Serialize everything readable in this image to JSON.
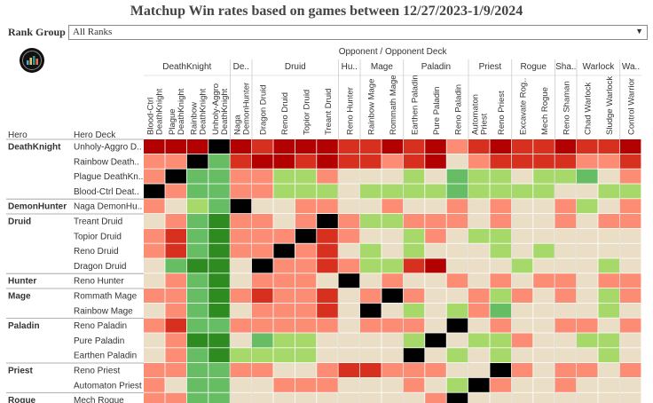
{
  "title": "Matchup Win rates based on games between 12/27/2023-1/9/2024",
  "filter": {
    "label": "Rank Group",
    "value": "All Ranks"
  },
  "header": {
    "opponent_label": "Opponent  /  Opponent Deck",
    "hero_label": "Hero",
    "deck_label": "Hero Deck"
  },
  "colors": {
    "black": "#000000",
    "dark_red": "#b30000",
    "red": "#d7301f",
    "salmon": "#fc8d74",
    "beige": "#eadfc6",
    "light_green": "#a6d96a",
    "green": "#66bd63",
    "dark_green": "#2e8b20"
  },
  "chart_data": {
    "type": "heatmap",
    "title": "Matchup Win rates based on games between 12/27/2023-1/9/2024",
    "color_scale_levels": [
      "black",
      "dark_red",
      "red",
      "salmon",
      "beige",
      "light_green",
      "green",
      "dark_green"
    ],
    "col_groups": [
      {
        "label": "DeathKnight",
        "span": 4
      },
      {
        "label": "De..",
        "span": 1
      },
      {
        "label": "Druid",
        "span": 4
      },
      {
        "label": "Hu..",
        "span": 1
      },
      {
        "label": "Mage",
        "span": 2
      },
      {
        "label": "Paladin",
        "span": 3
      },
      {
        "label": "Priest",
        "span": 2
      },
      {
        "label": "Rogue",
        "span": 2
      },
      {
        "label": "Sha..",
        "span": 1
      },
      {
        "label": "Warlock",
        "span": 2
      },
      {
        "label": "Wa..",
        "span": 1
      }
    ],
    "columns": [
      [
        "Blood-Ctrl",
        "DeathKnight"
      ],
      [
        "Plague",
        "DeathKnight"
      ],
      [
        "Rainbow",
        "DeathKnight"
      ],
      [
        "Unholy-Aggro",
        "DeathKnight"
      ],
      [
        "Naga",
        "DemonHunter"
      ],
      [
        "Dragon Druid"
      ],
      [
        "Reno Druid"
      ],
      [
        "Topior Druid"
      ],
      [
        "Treant Druid"
      ],
      [
        "Reno Hunter"
      ],
      [
        "Rainbow Mage"
      ],
      [
        "Rommath Mage"
      ],
      [
        "Earthen Paladin"
      ],
      [
        "Pure Paladin"
      ],
      [
        "Reno Paladin"
      ],
      [
        "Automaton",
        "Priest"
      ],
      [
        "Reno Priest"
      ],
      [
        "Excavate Rog.."
      ],
      [
        "Mech Rogue"
      ],
      [
        "Reno Shaman"
      ],
      [
        "Chad Warlock"
      ],
      [
        "Sludge Warlock"
      ],
      [
        "Control Warrior"
      ]
    ],
    "rows": [
      {
        "hero": "DeathKnight",
        "deck": "Unholy-Aggro D..",
        "cells": [
          1,
          1,
          1,
          0,
          1,
          2,
          1,
          1,
          1,
          2,
          2,
          1,
          2,
          1,
          3,
          2,
          1,
          2,
          2,
          1,
          2,
          2,
          1
        ]
      },
      {
        "hero": "",
        "deck": "Rainbow Death..",
        "cells": [
          3,
          3,
          0,
          6,
          2,
          1,
          1,
          2,
          1,
          2,
          2,
          3,
          2,
          1,
          4,
          3,
          2,
          2,
          2,
          2,
          3,
          3,
          2
        ]
      },
      {
        "hero": "",
        "deck": "Plague DeathKn..",
        "cells": [
          3,
          0,
          6,
          6,
          3,
          3,
          5,
          5,
          3,
          4,
          4,
          4,
          5,
          4,
          6,
          5,
          5,
          4,
          5,
          5,
          6,
          4,
          3
        ]
      },
      {
        "hero": "",
        "deck": "Blood-Ctrl Deat..",
        "cells": [
          0,
          3,
          6,
          6,
          3,
          3,
          5,
          5,
          5,
          4,
          5,
          5,
          5,
          5,
          6,
          5,
          5,
          5,
          5,
          4,
          4,
          5,
          5
        ]
      },
      {
        "hero": "DemonHunter",
        "deck": "Naga DemonHu..",
        "cells": [
          3,
          4,
          5,
          6,
          0,
          4,
          4,
          3,
          3,
          4,
          4,
          3,
          4,
          4,
          3,
          4,
          3,
          4,
          4,
          3,
          5,
          4,
          3
        ]
      },
      {
        "hero": "Druid",
        "deck": "Treant Druid",
        "cells": [
          4,
          3,
          6,
          7,
          3,
          3,
          4,
          3,
          0,
          3,
          5,
          5,
          3,
          3,
          3,
          4,
          3,
          4,
          4,
          3,
          4,
          3,
          3
        ]
      },
      {
        "hero": "",
        "deck": "Topior Druid",
        "cells": [
          3,
          2,
          6,
          7,
          3,
          3,
          3,
          0,
          2,
          3,
          4,
          4,
          5,
          3,
          4,
          5,
          5,
          4,
          4,
          4,
          4,
          4,
          4
        ]
      },
      {
        "hero": "",
        "deck": "Reno Druid",
        "cells": [
          3,
          2,
          6,
          7,
          3,
          3,
          0,
          3,
          2,
          4,
          5,
          4,
          5,
          4,
          4,
          4,
          5,
          4,
          5,
          4,
          4,
          4,
          4
        ]
      },
      {
        "hero": "",
        "deck": "Dragon Druid",
        "cells": [
          4,
          6,
          7,
          7,
          4,
          0,
          3,
          3,
          2,
          3,
          5,
          5,
          2,
          1,
          4,
          4,
          4,
          5,
          4,
          4,
          4,
          5,
          4
        ]
      },
      {
        "hero": "Hunter",
        "deck": "Reno Hunter",
        "cells": [
          4,
          3,
          6,
          7,
          4,
          3,
          3,
          3,
          4,
          0,
          4,
          3,
          4,
          4,
          3,
          4,
          3,
          4,
          3,
          3,
          4,
          3,
          3
        ]
      },
      {
        "hero": "Mage",
        "deck": "Rommath Mage",
        "cells": [
          3,
          3,
          6,
          7,
          3,
          2,
          3,
          3,
          2,
          4,
          3,
          0,
          3,
          4,
          4,
          3,
          5,
          3,
          4,
          3,
          4,
          5,
          3
        ]
      },
      {
        "hero": "",
        "deck": "Rainbow Mage",
        "cells": [
          4,
          3,
          6,
          7,
          4,
          3,
          3,
          3,
          2,
          4,
          0,
          4,
          5,
          4,
          5,
          3,
          6,
          4,
          4,
          4,
          4,
          5,
          4
        ]
      },
      {
        "hero": "Paladin",
        "deck": "Reno Paladin",
        "cells": [
          3,
          2,
          6,
          6,
          3,
          3,
          3,
          3,
          3,
          4,
          3,
          3,
          3,
          4,
          0,
          4,
          3,
          4,
          4,
          3,
          3,
          4,
          3
        ]
      },
      {
        "hero": "",
        "deck": "Pure Paladin",
        "cells": [
          4,
          3,
          7,
          7,
          4,
          6,
          5,
          5,
          4,
          4,
          4,
          4,
          5,
          0,
          4,
          5,
          5,
          3,
          4,
          4,
          5,
          5,
          4
        ]
      },
      {
        "hero": "",
        "deck": "Earthen Paladin",
        "cells": [
          4,
          3,
          6,
          7,
          5,
          5,
          5,
          5,
          4,
          4,
          4,
          4,
          0,
          4,
          5,
          4,
          5,
          4,
          4,
          4,
          4,
          5,
          4
        ]
      },
      {
        "hero": "Priest",
        "deck": "Reno Priest",
        "cells": [
          3,
          3,
          6,
          6,
          3,
          3,
          4,
          4,
          3,
          2,
          2,
          3,
          3,
          3,
          4,
          4,
          0,
          3,
          4,
          3,
          3,
          4,
          3
        ]
      },
      {
        "hero": "",
        "deck": "Automaton Priest",
        "cells": [
          3,
          4,
          6,
          6,
          4,
          4,
          3,
          3,
          3,
          4,
          4,
          4,
          3,
          4,
          5,
          0,
          3,
          4,
          4,
          3,
          4,
          4,
          4
        ]
      },
      {
        "hero": "Rogue",
        "deck": "Mech Rogue",
        "cells": [
          3,
          3,
          6,
          6,
          4,
          4,
          4,
          4,
          4,
          4,
          4,
          4,
          4,
          3,
          0,
          4,
          4,
          4,
          4,
          4,
          4,
          4,
          4
        ]
      }
    ]
  }
}
